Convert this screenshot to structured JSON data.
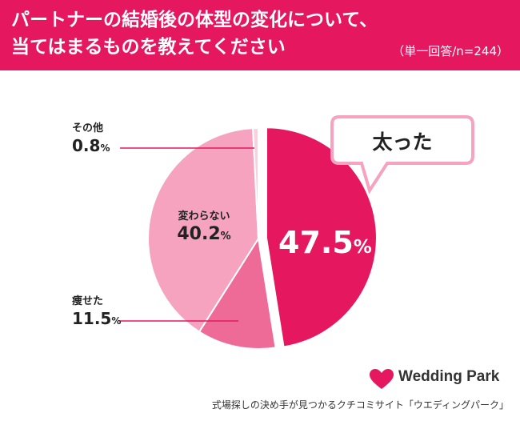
{
  "header": {
    "title_line1": "パートナーの結婚後の体型の変化について、",
    "title_line2": "当てはまるものを教えてください",
    "subtitle": "（単一回答/n=244）"
  },
  "chart_data": {
    "type": "pie",
    "title": "パートナーの結婚後の体型の変化について、当てはまるものを教えてください",
    "subtitle": "（単一回答/n=244）",
    "unit": "%",
    "slices": [
      {
        "label": "太った",
        "value": 47.5,
        "value_text": "47.5",
        "color": "#e5175f"
      },
      {
        "label": "痩せた",
        "value": 11.5,
        "value_text": "11.5",
        "color": "#ee6a97"
      },
      {
        "label": "変わらない",
        "value": 40.2,
        "value_text": "40.2",
        "color": "#f5a3bf"
      },
      {
        "label": "その他",
        "value": 0.8,
        "value_text": "0.8",
        "color": "#fad0df"
      }
    ]
  },
  "footer": {
    "brand": "Wedding Park",
    "caption": "式場探しの決め手が見つかるクチコミサイト「ウエディングパーク」"
  }
}
